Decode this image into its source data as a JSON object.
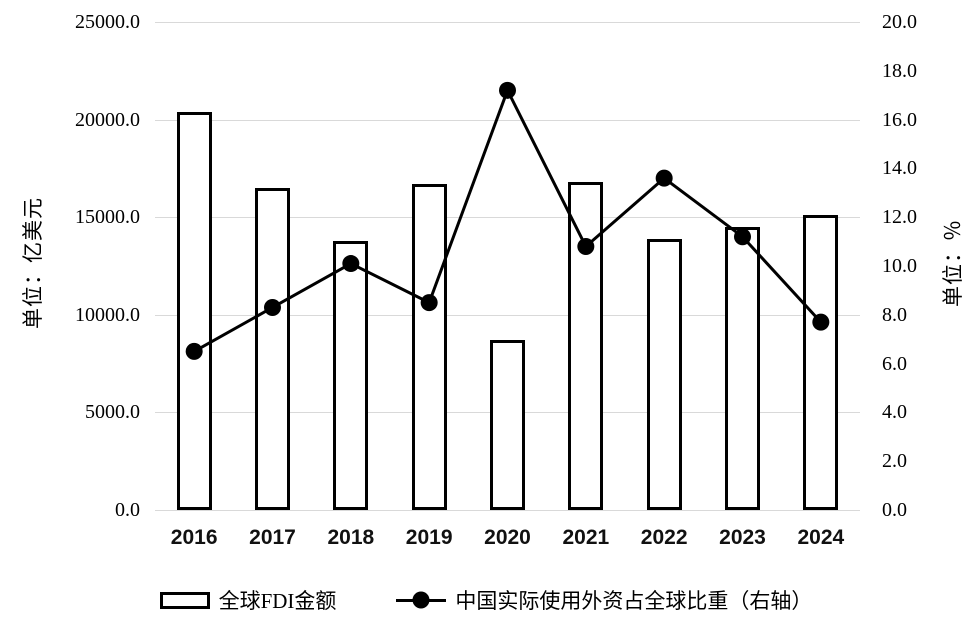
{
  "chart_data": {
    "type": "combo",
    "categories": [
      "2016",
      "2017",
      "2018",
      "2019",
      "2020",
      "2021",
      "2022",
      "2023",
      "2024"
    ],
    "series": [
      {
        "name": "全球FDI金额",
        "type": "bar",
        "axis": "left",
        "values": [
          20400,
          16500,
          13800,
          16700,
          8700,
          16800,
          13900,
          14500,
          15100
        ]
      },
      {
        "name": "中国实际使用外资占全球比重（右轴）",
        "type": "line",
        "axis": "right",
        "values": [
          6.5,
          8.3,
          10.1,
          8.5,
          17.2,
          10.8,
          13.6,
          11.2,
          7.7
        ]
      }
    ],
    "left_axis": {
      "title": "单位：亿美元",
      "min": 0,
      "max": 25000,
      "tick_interval": 5000,
      "tick_labels": [
        "25000.0",
        "20000.0",
        "15000.0",
        "10000.0",
        "5000.0",
        "0.0"
      ]
    },
    "right_axis": {
      "title": "单位：％",
      "min": 0,
      "max": 20,
      "tick_interval": 2,
      "tick_labels": [
        "20.0",
        "18.0",
        "16.0",
        "14.0",
        "12.0",
        "10.0",
        "8.0",
        "6.0",
        "4.0",
        "2.0",
        "0.0"
      ]
    },
    "grid": true,
    "legend_position": "bottom",
    "colors": {
      "bar_fill": "#ffffff",
      "bar_border": "#000000",
      "line": "#000000",
      "marker": "#000000",
      "gridline": "#d9d9d9",
      "text": "#000000"
    }
  }
}
